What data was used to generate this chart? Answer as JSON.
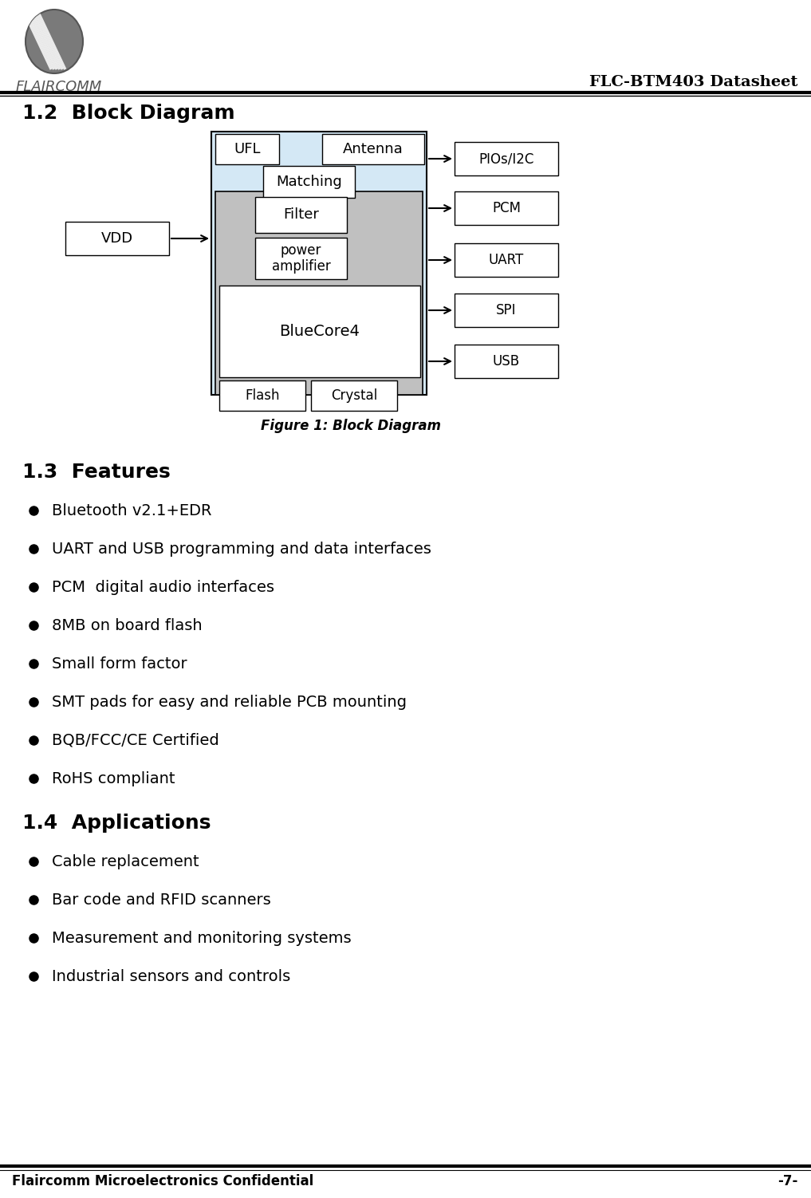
{
  "title_right": "FLC-BTM403 Datasheet",
  "section_12": "1.2  Block Diagram",
  "figure_caption": "Figure 1: Block Diagram",
  "section_13": "1.3  Features",
  "features": [
    "Bluetooth v2.1+EDR",
    "UART and USB programming and data interfaces",
    "PCM  digital audio interfaces",
    "8MB on board flash",
    "Small form factor",
    "SMT pads for easy and reliable PCB mounting",
    "BQB/FCC/CE Certified",
    "RoHS compliant"
  ],
  "section_14": "1.4  Applications",
  "applications": [
    "Cable replacement",
    "Bar code and RFID scanners",
    "Measurement and monitoring systems",
    "Industrial sensors and controls"
  ],
  "footer_left": "Flaircomm Microelectronics Confidential",
  "footer_right": "-7-",
  "bg_color": "#ffffff",
  "box_color_outer": "#d4e8f5",
  "box_color_inner": "#c0c0c0",
  "text_color": "#000000"
}
